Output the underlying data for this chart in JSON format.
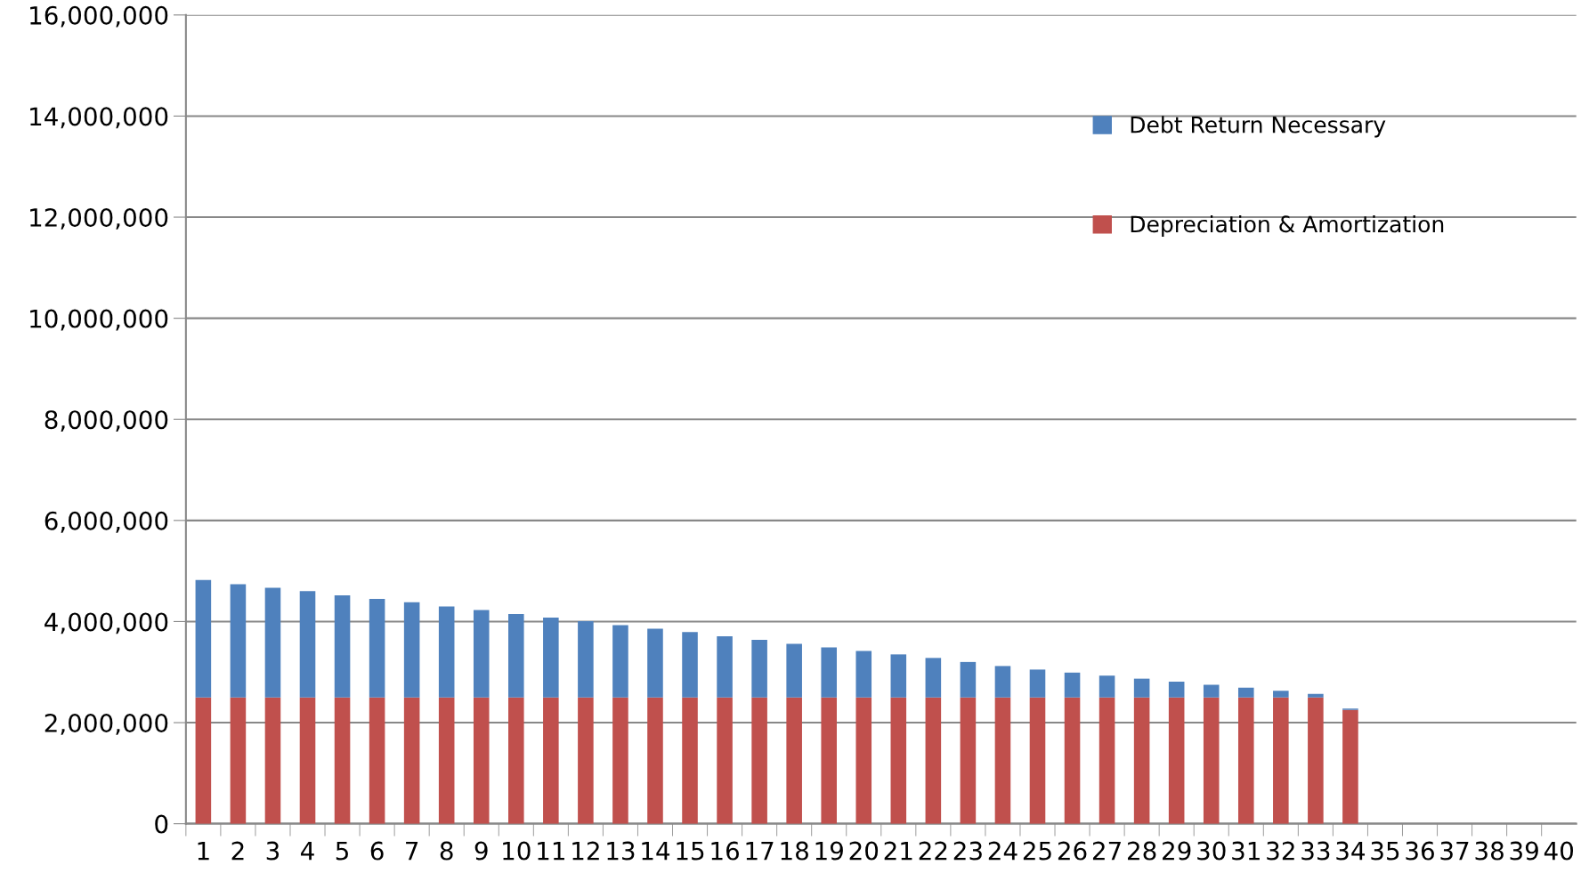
{
  "chart_data": {
    "type": "bar",
    "stacked": true,
    "categories": [
      "1",
      "2",
      "3",
      "4",
      "5",
      "6",
      "7",
      "8",
      "9",
      "10",
      "11",
      "12",
      "13",
      "14",
      "15",
      "16",
      "17",
      "18",
      "19",
      "20",
      "21",
      "22",
      "23",
      "24",
      "25",
      "26",
      "27",
      "28",
      "29",
      "30",
      "31",
      "32",
      "33",
      "34",
      "35",
      "36",
      "37",
      "38",
      "39",
      "40"
    ],
    "series": [
      {
        "name": "Depreciation & Amortization",
        "color": "#c0504d",
        "values": [
          2500000,
          2500000,
          2500000,
          2500000,
          2500000,
          2500000,
          2500000,
          2500000,
          2500000,
          2500000,
          2500000,
          2500000,
          2500000,
          2500000,
          2500000,
          2500000,
          2500000,
          2500000,
          2500000,
          2500000,
          2500000,
          2500000,
          2500000,
          2500000,
          2500000,
          2500000,
          2500000,
          2500000,
          2500000,
          2500000,
          2500000,
          2500000,
          2500000,
          2250000,
          null,
          null,
          null,
          null,
          null,
          null
        ]
      },
      {
        "name": "Debt Return Necessary",
        "color": "#4f81bd",
        "values": [
          2320000,
          2240000,
          2170000,
          2100000,
          2020000,
          1950000,
          1880000,
          1800000,
          1730000,
          1650000,
          1580000,
          1510000,
          1430000,
          1360000,
          1290000,
          1210000,
          1140000,
          1060000,
          990000,
          920000,
          850000,
          780000,
          700000,
          620000,
          550000,
          490000,
          430000,
          370000,
          310000,
          250000,
          190000,
          130000,
          70000,
          30000,
          null,
          null,
          null,
          null,
          null,
          null
        ]
      }
    ],
    "ylim": [
      0,
      16000000
    ],
    "yticks": [
      0,
      {
        "value": 2000000,
        "label": "2,000,000"
      },
      {
        "value": 4000000,
        "label": "4,000,000"
      },
      {
        "value": 6000000,
        "label": "6,000,000"
      },
      {
        "value": 8000000,
        "label": "8,000,000"
      },
      {
        "value": 10000000,
        "label": "10,000,000"
      },
      {
        "value": 12000000,
        "label": "12,000,000"
      },
      {
        "value": 14000000,
        "label": "14,000,000"
      },
      {
        "value": 16000000,
        "label": "16,000,000"
      }
    ],
    "grid": "y",
    "legend": "top right"
  }
}
